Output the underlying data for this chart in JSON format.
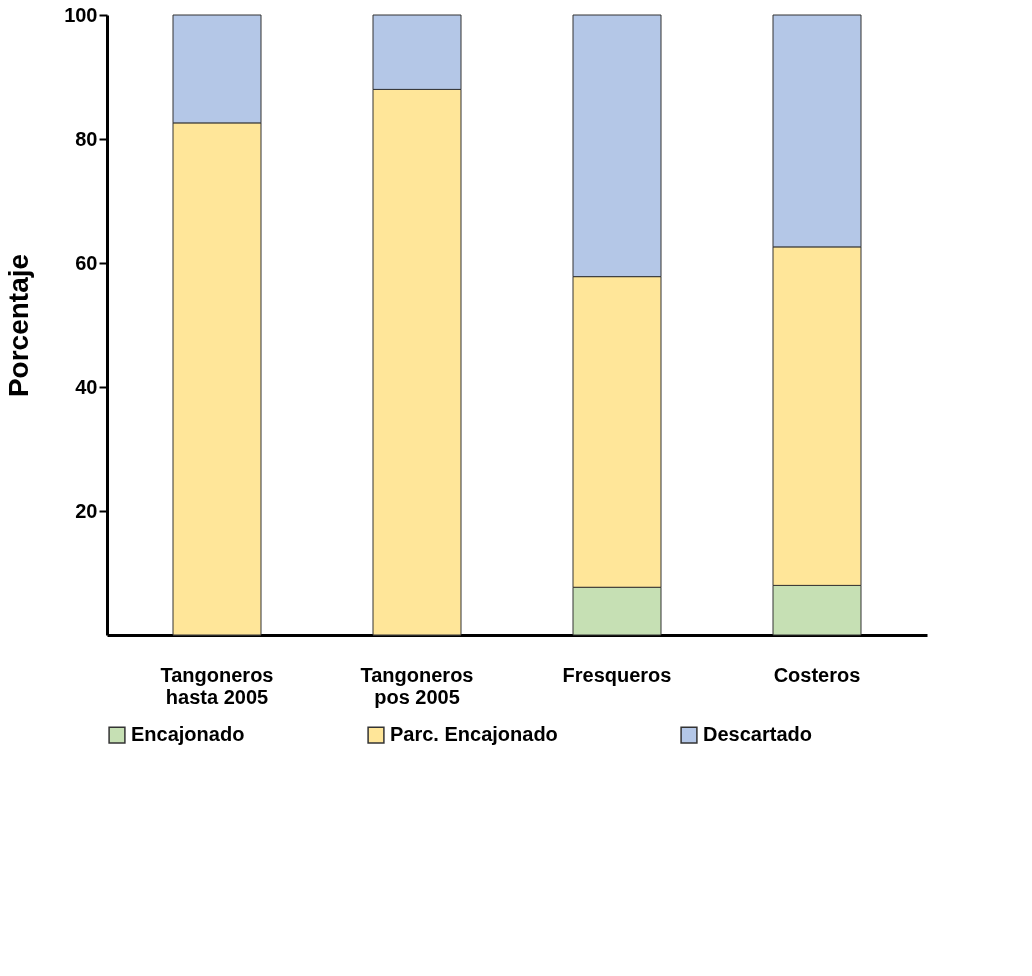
{
  "chart_data": {
    "type": "bar",
    "stacked": true,
    "ylabel": "Porcentaje",
    "categories": [
      "Tangoneros\nhasta 2005",
      "Tangoneros\npos 2005",
      "Fresqueros",
      "Costeros"
    ],
    "series": [
      {
        "name": "Encajonado",
        "color": "#c6e0b4",
        "values": [
          0,
          0,
          7.7,
          8.0
        ]
      },
      {
        "name": "Parc. Encajonado",
        "color": "#ffe699",
        "values": [
          82.6,
          88.0,
          50.1,
          54.6
        ]
      },
      {
        "name": "Descartado",
        "color": "#b4c7e7",
        "values": [
          17.4,
          12.0,
          42.2,
          37.4
        ]
      }
    ],
    "ylim": [
      0,
      100
    ],
    "yticks": [
      20,
      40,
      60,
      80,
      100
    ],
    "grid": false,
    "legend": "bottom"
  }
}
